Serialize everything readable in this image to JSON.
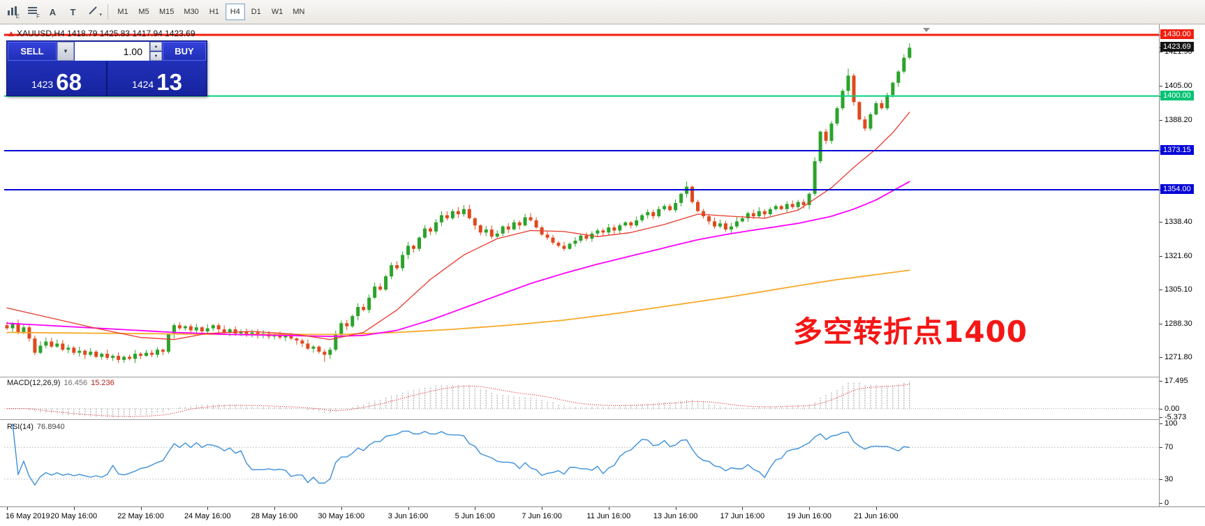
{
  "window_title": "XAUUSD,H4",
  "toolbar": {
    "icons": [
      {
        "name": "chart-window-icon",
        "kind": "bars",
        "letter": "E"
      },
      {
        "name": "quotes-grid-icon",
        "kind": "rows",
        "letter": "F"
      },
      {
        "name": "text-label-tool-icon",
        "kind": "letter",
        "letter": "A"
      },
      {
        "name": "text-box-tool-icon",
        "kind": "letter",
        "letter": "T"
      },
      {
        "name": "trendline-tool-icon",
        "kind": "trend",
        "letter": ""
      }
    ],
    "timeframes": [
      "M1",
      "M5",
      "M15",
      "M30",
      "H1",
      "H4",
      "D1",
      "W1",
      "MN"
    ],
    "active_timeframe": "H4"
  },
  "symbol_header": {
    "text": "XAUUSD,H4 1418.79 1425.83 1417.94 1423.69"
  },
  "one_click_trading": {
    "sell_label": "SELL",
    "buy_label": "BUY",
    "volume": "1.00",
    "sell_price_small": "1423",
    "sell_price_big": "68",
    "buy_price_small": "1424",
    "buy_price_big": "13"
  },
  "annotation": {
    "text": "多空转折点1400",
    "color": "#f51616"
  },
  "price_axis": {
    "plain_ticks": [
      "1421.90",
      "1405.00",
      "1388.20",
      "1338.40",
      "1321.60",
      "1305.10",
      "1288.30",
      "1271.80"
    ],
    "line_labels": [
      {
        "value": "1430.00",
        "price": 1430.0,
        "bg": "#f01e0e",
        "type": "resistance-line-label"
      },
      {
        "value": "1423.69",
        "price": 1423.69,
        "bg": "#141414",
        "type": "current-price-label"
      },
      {
        "value": "1400.00",
        "price": 1400.0,
        "bg": "#00c274",
        "type": "pivot-line-label"
      },
      {
        "value": "1373.15",
        "price": 1373.15,
        "bg": "#0404d8",
        "type": "support-line-label"
      },
      {
        "value": "1354.00",
        "price": 1354.0,
        "bg": "#0404d8",
        "type": "support-line-label"
      }
    ]
  },
  "chart_data": {
    "type": "candlestick",
    "symbol": "XAUUSD",
    "timeframe": "H4",
    "ohlc_current": {
      "open": 1418.79,
      "high": 1425.83,
      "low": 1417.94,
      "close": 1423.69
    },
    "up_color": "#2ba32b",
    "down_color": "#e0491d",
    "y_axis": {
      "min": 1268,
      "max": 1432,
      "ticks": [
        1430.0,
        1423.69,
        1421.9,
        1405.0,
        1400.0,
        1388.2,
        1373.15,
        1354.0,
        1338.4,
        1321.6,
        1305.1,
        1288.3,
        1271.8
      ]
    },
    "x_labels": [
      {
        "index": 0,
        "label": "16 May 2019"
      },
      {
        "index": 12,
        "label": "20 May 16:00"
      },
      {
        "index": 24,
        "label": "22 May 16:00"
      },
      {
        "index": 36,
        "label": "24 May 16:00"
      },
      {
        "index": 48,
        "label": "28 May 16:00"
      },
      {
        "index": 60,
        "label": "30 May 16:00"
      },
      {
        "index": 72,
        "label": "3 Jun 16:00"
      },
      {
        "index": 84,
        "label": "5 Jun 16:00"
      },
      {
        "index": 96,
        "label": "7 Jun 16:00"
      },
      {
        "index": 108,
        "label": "11 Jun 16:00"
      },
      {
        "index": 120,
        "label": "13 Jun 16:00"
      },
      {
        "index": 132,
        "label": "17 Jun 16:00"
      },
      {
        "index": 144,
        "label": "19 Jun 16:00"
      },
      {
        "index": 156,
        "label": "21 Jun 16:00"
      }
    ],
    "first_open": 1287.5,
    "closes": [
      1286.0,
      1288.5,
      1284.0,
      1286.5,
      1281.0,
      1274.0,
      1277.5,
      1279.5,
      1277.0,
      1278.5,
      1275.5,
      1276.5,
      1274.0,
      1275.0,
      1273.0,
      1274.5,
      1272.0,
      1273.5,
      1271.5,
      1272.5,
      1270.5,
      1272.0,
      1271.0,
      1273.5,
      1272.5,
      1274.0,
      1273.0,
      1275.5,
      1274.5,
      1283.0,
      1287.5,
      1286.0,
      1287.0,
      1285.0,
      1286.5,
      1284.5,
      1286.0,
      1287.5,
      1285.5,
      1284.0,
      1285.5,
      1283.5,
      1284.5,
      1283.0,
      1284.0,
      1282.5,
      1283.5,
      1282.0,
      1283.0,
      1281.5,
      1282.5,
      1281.0,
      1280.0,
      1278.5,
      1276.0,
      1277.0,
      1274.5,
      1273.0,
      1275.5,
      1283.0,
      1288.5,
      1287.0,
      1292.0,
      1296.5,
      1295.0,
      1301.0,
      1306.5,
      1305.0,
      1311.5,
      1317.0,
      1315.5,
      1322.0,
      1326.5,
      1325.0,
      1330.5,
      1335.0,
      1333.5,
      1338.0,
      1341.5,
      1340.0,
      1343.5,
      1342.0,
      1344.5,
      1340.0,
      1336.5,
      1333.0,
      1334.5,
      1331.0,
      1332.5,
      1336.0,
      1334.5,
      1338.0,
      1336.5,
      1340.5,
      1339.0,
      1335.5,
      1332.0,
      1330.5,
      1328.0,
      1326.5,
      1325.0,
      1327.5,
      1329.0,
      1331.5,
      1330.0,
      1332.5,
      1334.0,
      1333.0,
      1335.5,
      1334.0,
      1336.5,
      1338.0,
      1336.5,
      1339.0,
      1341.5,
      1343.0,
      1341.0,
      1344.5,
      1346.0,
      1344.0,
      1347.5,
      1352.0,
      1355.5,
      1348.0,
      1343.5,
      1341.0,
      1338.5,
      1336.0,
      1337.5,
      1334.5,
      1336.0,
      1338.5,
      1340.0,
      1342.5,
      1341.0,
      1343.5,
      1342.0,
      1344.5,
      1346.0,
      1344.5,
      1347.0,
      1345.5,
      1348.0,
      1346.5,
      1352.0,
      1368.0,
      1382.5,
      1378.0,
      1386.5,
      1394.0,
      1402.5,
      1410.0,
      1397.0,
      1388.5,
      1384.0,
      1391.0,
      1396.5,
      1394.0,
      1400.5,
      1406.5,
      1412.0,
      1418.8,
      1423.69
    ],
    "wick_overrides": {
      "20": {
        "low": 1269.0
      },
      "57": {
        "low": 1269.5
      },
      "122": {
        "high": 1358.0
      },
      "151": {
        "high": 1413.5
      },
      "162": {
        "high": 1425.83,
        "low": 1417.94
      }
    },
    "horizontal_lines": [
      {
        "price": 1430.0,
        "color": "#f01e0e",
        "width": 3
      },
      {
        "price": 1400.0,
        "color": "#00d17e",
        "width": 2
      },
      {
        "price": 1373.15,
        "color": "#0404d8",
        "width": 2
      },
      {
        "price": 1354.0,
        "color": "#0404d8",
        "width": 2
      }
    ],
    "moving_averages": [
      {
        "name": "slow",
        "color": "#f7a928",
        "width": 1.8,
        "anchors": [
          [
            0,
            1284
          ],
          [
            20,
            1283.5
          ],
          [
            40,
            1283
          ],
          [
            60,
            1283
          ],
          [
            70,
            1284
          ],
          [
            80,
            1285.5
          ],
          [
            90,
            1287.5
          ],
          [
            100,
            1290
          ],
          [
            110,
            1293.5
          ],
          [
            120,
            1297.5
          ],
          [
            130,
            1301.5
          ],
          [
            140,
            1306
          ],
          [
            148,
            1309.5
          ],
          [
            155,
            1312
          ],
          [
            162,
            1314.5
          ]
        ]
      },
      {
        "name": "mid",
        "color": "#ff00ff",
        "width": 1.8,
        "anchors": [
          [
            0,
            1288.5
          ],
          [
            10,
            1287
          ],
          [
            20,
            1285.5
          ],
          [
            30,
            1284
          ],
          [
            40,
            1283
          ],
          [
            50,
            1282.5
          ],
          [
            58,
            1282
          ],
          [
            64,
            1282.5
          ],
          [
            70,
            1285
          ],
          [
            76,
            1290
          ],
          [
            82,
            1296
          ],
          [
            88,
            1302
          ],
          [
            94,
            1308
          ],
          [
            100,
            1313
          ],
          [
            106,
            1317.5
          ],
          [
            112,
            1321.5
          ],
          [
            118,
            1325.5
          ],
          [
            124,
            1329.5
          ],
          [
            130,
            1332.5
          ],
          [
            136,
            1335
          ],
          [
            142,
            1337.5
          ],
          [
            148,
            1341
          ],
          [
            152,
            1344.5
          ],
          [
            156,
            1349
          ],
          [
            162,
            1358
          ]
        ]
      },
      {
        "name": "fast",
        "color": "#e8392c",
        "width": 1.3,
        "anchors": [
          [
            0,
            1296
          ],
          [
            8,
            1291
          ],
          [
            16,
            1286
          ],
          [
            24,
            1281.5
          ],
          [
            30,
            1280.5
          ],
          [
            36,
            1283.5
          ],
          [
            44,
            1284.5
          ],
          [
            52,
            1283
          ],
          [
            58,
            1280.5
          ],
          [
            64,
            1284
          ],
          [
            70,
            1295
          ],
          [
            76,
            1310
          ],
          [
            82,
            1322
          ],
          [
            88,
            1330
          ],
          [
            94,
            1334
          ],
          [
            100,
            1333.5
          ],
          [
            106,
            1331
          ],
          [
            112,
            1333
          ],
          [
            118,
            1337
          ],
          [
            124,
            1342
          ],
          [
            130,
            1341
          ],
          [
            136,
            1340
          ],
          [
            142,
            1344
          ],
          [
            148,
            1355
          ],
          [
            152,
            1365
          ],
          [
            156,
            1374
          ],
          [
            159,
            1382
          ],
          [
            162,
            1392
          ]
        ]
      }
    ],
    "indicators": {
      "macd": {
        "label": "MACD(12,26,9)",
        "value_main": "16.456",
        "value_signal": "15.236",
        "params": [
          12,
          26,
          9
        ],
        "axis": [
          "17.495",
          "0.00",
          "-5.373"
        ],
        "axis_max": 17.495,
        "axis_min": -5.373,
        "histogram_color": "#b9b9b9",
        "signal_color": "#e02626"
      },
      "rsi": {
        "label": "RSI(14)",
        "value": "76.8940",
        "period": 14,
        "axis": [
          "100",
          "70",
          "30",
          "0"
        ],
        "levels": [
          70,
          30
        ],
        "color": "#3c8fd9",
        "axis_max": 100,
        "axis_min": 0
      }
    }
  }
}
